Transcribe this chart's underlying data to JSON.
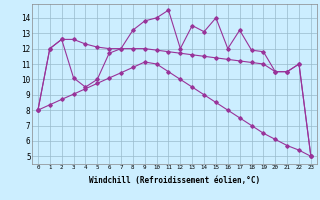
{
  "xlabel": "Windchill (Refroidissement éolien,°C)",
  "x": [
    0,
    1,
    2,
    3,
    4,
    5,
    6,
    7,
    8,
    9,
    10,
    11,
    12,
    13,
    14,
    15,
    16,
    17,
    18,
    19,
    20,
    21,
    22,
    23
  ],
  "line_max": [
    8.0,
    12.0,
    12.6,
    10.1,
    9.5,
    10.0,
    11.7,
    12.0,
    13.2,
    13.8,
    14.0,
    14.5,
    12.0,
    13.5,
    13.1,
    14.0,
    12.0,
    13.2,
    11.9,
    11.8,
    10.5,
    10.5,
    11.0,
    5.0
  ],
  "line_mid": [
    8.0,
    12.0,
    12.6,
    12.6,
    12.3,
    12.1,
    12.0,
    12.0,
    12.0,
    12.0,
    11.9,
    11.8,
    11.7,
    11.6,
    11.5,
    11.4,
    11.3,
    11.2,
    11.1,
    11.0,
    10.5,
    10.5,
    11.0,
    5.0
  ],
  "line_min": [
    8.0,
    8.35,
    8.7,
    9.04,
    9.39,
    9.74,
    10.09,
    10.43,
    10.78,
    11.13,
    11.0,
    10.5,
    10.0,
    9.5,
    9.0,
    8.5,
    8.0,
    7.5,
    7.0,
    6.5,
    6.1,
    5.7,
    5.4,
    5.0
  ],
  "line_color": "#993399",
  "bg_color": "#cceeff",
  "grid_color": "#99bbcc",
  "ylim": [
    4.5,
    14.9
  ],
  "yticks": [
    5,
    6,
    7,
    8,
    9,
    10,
    11,
    12,
    13,
    14
  ],
  "xticks": [
    0,
    1,
    2,
    3,
    4,
    5,
    6,
    7,
    8,
    9,
    10,
    11,
    12,
    13,
    14,
    15,
    16,
    17,
    18,
    19,
    20,
    21,
    22,
    23
  ]
}
